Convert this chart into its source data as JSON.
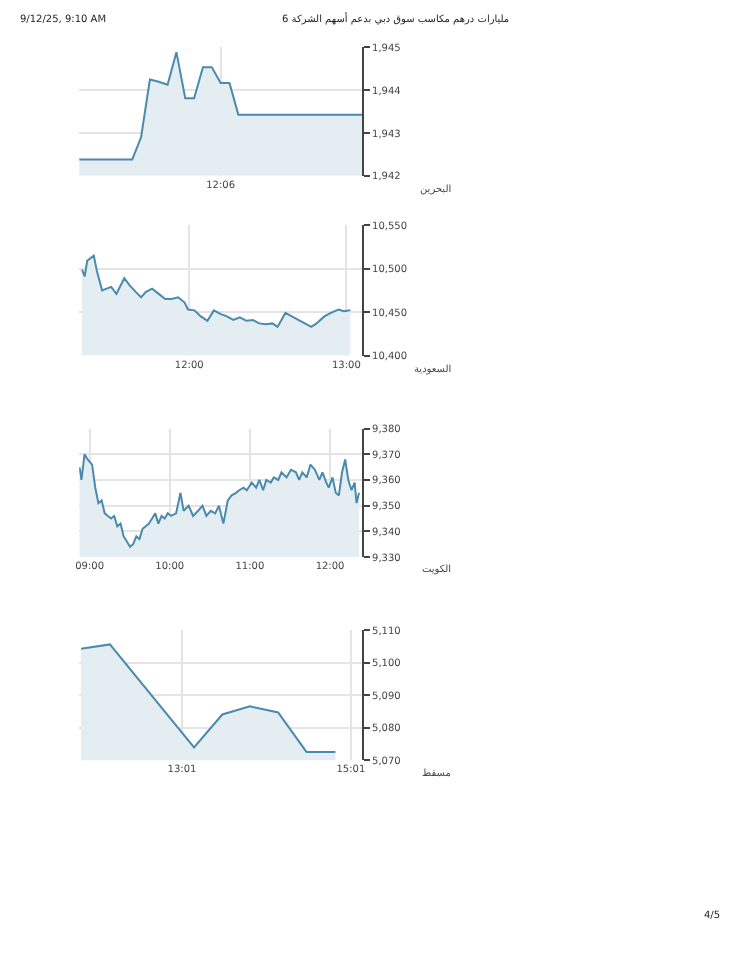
{
  "chart_data": [
    {
      "type": "area",
      "xlabel": "البحرين",
      "annotations": [
        "9/12/25, 9:10 AM",
        "مليارات درهم مكاسب سوق دبي بدعم أسهم الشركة 6"
      ],
      "grid": true,
      "marker": "none",
      "categories": [
        null,
        null,
        null,
        null,
        null,
        null,
        null,
        null,
        null,
        null,
        null,
        null,
        null,
        null,
        null,
        null,
        "12:06",
        null,
        null,
        null,
        null,
        null,
        null,
        null,
        null,
        null,
        null,
        null,
        null,
        null,
        null,
        null,
        null
      ],
      "series": [
        {
          "color": "#4a8aad",
          "values": [
            1942.38,
            1942.38,
            1942.38,
            1942.38,
            1942.38,
            1942.38,
            1942.38,
            1942.9,
            1944.25,
            1944.2,
            1944.13,
            1944.89,
            1943.81,
            1943.81,
            1944.54,
            1944.54,
            1944.17,
            1944.17,
            1943.43,
            1943.43,
            1943.43,
            1943.43,
            1943.43,
            1943.43,
            1943.43,
            1943.43,
            1943.43,
            1943.43,
            1943.43,
            1943.43,
            1943.43,
            1943.43,
            1943.43
          ]
        }
      ],
      "ylim": [
        1942,
        1945
      ],
      "yticks": [
        {
          "value": 1942,
          "label": "1,942"
        },
        {
          "value": 1943,
          "label": "1,943"
        },
        {
          "value": 1944,
          "label": "1,944"
        },
        {
          "value": 1945,
          "label": "1,945"
        }
      ]
    },
    {
      "type": "area",
      "xlabel": "السعودية",
      "grid": true,
      "marker": "none",
      "x": [
        11.318,
        11.335,
        11.351,
        11.393,
        11.413,
        11.446,
        11.475,
        11.504,
        11.537,
        11.587,
        11.62,
        11.661,
        11.694,
        11.723,
        11.764,
        11.806,
        11.847,
        11.888,
        11.93,
        11.971,
        11.992,
        12.033,
        12.074,
        12.116,
        12.157,
        12.198,
        12.24,
        12.281,
        12.322,
        12.364,
        12.405,
        12.446,
        12.488,
        12.529,
        12.562,
        12.612,
        12.653,
        12.694,
        12.736,
        12.777,
        12.81,
        12.86,
        12.901,
        12.95,
        12.983,
        13.025
      ],
      "series": [
        {
          "color": "#4a8aad",
          "values": [
            10499,
            10491,
            10509,
            10515,
            10497,
            10475,
            10477,
            10479,
            10471,
            10489,
            10481,
            10473,
            10467,
            10473,
            10477,
            10471,
            10465,
            10465,
            10467,
            10461,
            10453,
            10452,
            10445,
            10440,
            10452,
            10448,
            10445,
            10441,
            10444,
            10440,
            10441,
            10437,
            10436,
            10437,
            10433,
            10449,
            10445,
            10441,
            10437,
            10433,
            10437,
            10445,
            10449,
            10453,
            10451,
            10452
          ]
        }
      ],
      "xlim": [
        11.3,
        13.1
      ],
      "xticks": [
        {
          "value": 12,
          "label": "12:00"
        },
        {
          "value": 13,
          "label": "13:00"
        }
      ],
      "ylim": [
        10400,
        10550
      ],
      "yticks": [
        {
          "value": 10400,
          "label": "10,400"
        },
        {
          "value": 10450,
          "label": "10,450"
        },
        {
          "value": 10500,
          "label": "10,500"
        },
        {
          "value": 10550,
          "label": "10,550"
        }
      ]
    },
    {
      "type": "area",
      "xlabel": "الكويت",
      "grid": true,
      "marker": "none",
      "x": [
        8.874,
        8.898,
        8.937,
        8.976,
        9.031,
        9.071,
        9.11,
        9.15,
        9.189,
        9.228,
        9.268,
        9.307,
        9.346,
        9.386,
        9.425,
        9.465,
        9.504,
        9.543,
        9.583,
        9.622,
        9.661,
        9.701,
        9.74,
        9.78,
        9.819,
        9.858,
        9.898,
        9.937,
        9.976,
        10.016,
        10.079,
        10.134,
        10.173,
        10.236,
        10.291,
        10.354,
        10.409,
        10.457,
        10.512,
        10.567,
        10.614,
        10.669,
        10.724,
        10.772,
        10.827,
        10.866,
        10.921,
        10.961,
        11.024,
        11.079,
        11.118,
        11.165,
        11.205,
        11.26,
        11.299,
        11.354,
        11.394,
        11.457,
        11.512,
        11.575,
        11.614,
        11.654,
        11.709,
        11.756,
        11.811,
        11.866,
        11.906,
        11.953,
        11.984,
        12.031,
        12.071,
        12.11,
        12.15,
        12.189,
        12.228,
        12.268,
        12.307,
        12.331,
        12.362
      ],
      "series": [
        {
          "color": "#4a8aad",
          "values": [
            9365,
            9360,
            9370,
            9368,
            9366,
            9357,
            9351,
            9352,
            9347,
            9346,
            9345,
            9346,
            9342,
            9343,
            9338,
            9336,
            9334,
            9335,
            9338,
            9337,
            9341,
            9342,
            9343,
            9345,
            9347,
            9343,
            9346,
            9345,
            9347,
            9346,
            9347,
            9355,
            9348,
            9350,
            9346,
            9348,
            9350,
            9346,
            9348,
            9347,
            9350,
            9343,
            9352,
            9354,
            9355,
            9356,
            9357,
            9356,
            9359,
            9357,
            9360,
            9356,
            9360,
            9359,
            9361,
            9360,
            9363,
            9361,
            9364,
            9363,
            9360,
            9363,
            9361,
            9366,
            9364,
            9360,
            9363,
            9359,
            9357,
            9361,
            9355,
            9354,
            9363,
            9368,
            9360,
            9356,
            9359,
            9351,
            9355
          ]
        }
      ],
      "xlim": [
        8.87,
        12.4
      ],
      "xticks": [
        {
          "value": 9,
          "label": "09:00"
        },
        {
          "value": 10,
          "label": "10:00"
        },
        {
          "value": 11,
          "label": "11:00"
        },
        {
          "value": 12,
          "label": "12:00"
        }
      ],
      "ylim": [
        9330,
        9380
      ],
      "yticks": [
        {
          "value": 9330,
          "label": "9,330"
        },
        {
          "value": 9340,
          "label": "9,340"
        },
        {
          "value": 9350,
          "label": "9,350"
        },
        {
          "value": 9360,
          "label": "9,360"
        },
        {
          "value": 9370,
          "label": "9,370"
        },
        {
          "value": 9380,
          "label": "9,380"
        }
      ]
    },
    {
      "type": "area",
      "xlabel": "مسقط",
      "annotations": [
        "4/5"
      ],
      "grid": true,
      "marker": "none",
      "x": [
        11.822,
        12.164,
        13.16,
        13.495,
        13.822,
        14.156,
        14.491,
        14.834
      ],
      "series": [
        {
          "color": "#4a8aad",
          "values": [
            5104.3,
            5105.6,
            5074.0,
            5084.1,
            5086.6,
            5084.7,
            5072.6,
            5072.6
          ]
        }
      ],
      "xlim": [
        11.8,
        15.15
      ],
      "xticks": [
        {
          "value": 13.017,
          "label": "13:01"
        },
        {
          "value": 15.017,
          "label": "15:01"
        }
      ],
      "ylim": [
        5070,
        5110
      ],
      "yticks": [
        {
          "value": 5070,
          "label": "5,070"
        },
        {
          "value": 5080,
          "label": "5,080"
        },
        {
          "value": 5090,
          "label": "5,090"
        },
        {
          "value": 5100,
          "label": "5,100"
        },
        {
          "value": 5110,
          "label": "5,110"
        }
      ]
    }
  ]
}
